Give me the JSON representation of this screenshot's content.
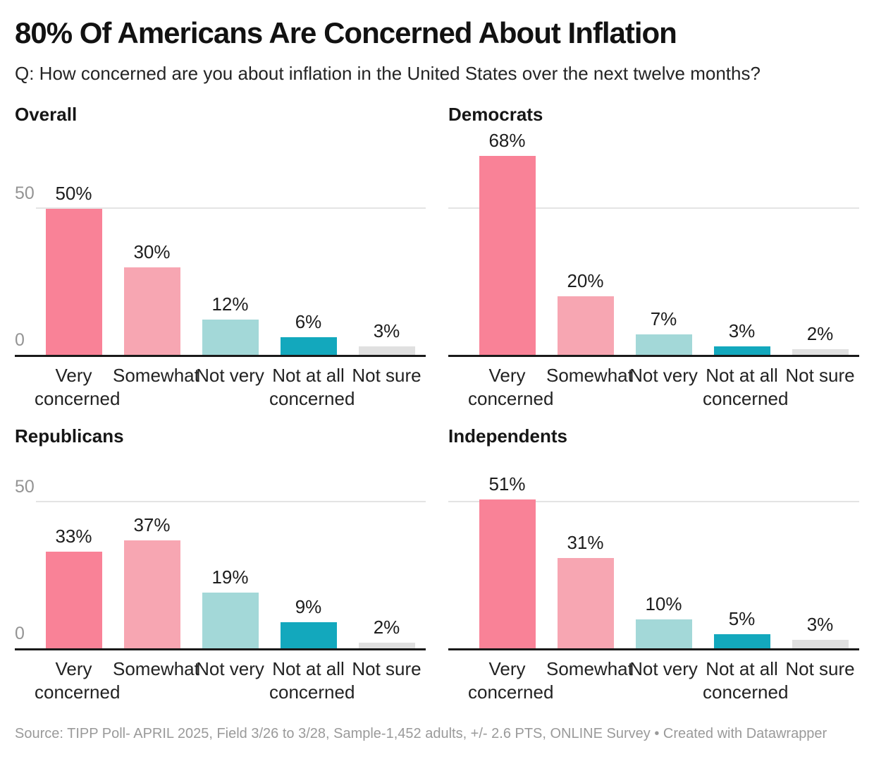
{
  "header": {
    "title": "80% Of Americans Are Concerned About Inflation",
    "subtitle": "Q: How concerned are you about inflation in the United States over the next twelve months?"
  },
  "chart_data": {
    "type": "bar",
    "layout": "2x2 small multiples, shared scale",
    "categories": [
      "Very concerned",
      "Somewhat",
      "Not very",
      "Not at all concerned",
      "Not sure"
    ],
    "unit": "%",
    "ylim": [
      0,
      68
    ],
    "y_ticks": [
      0,
      50
    ],
    "gridline_value": 50,
    "grid": "single horizontal gridline at 50; axis tick labels shown only on left-column panels",
    "series": [
      {
        "name": "Overall",
        "values": [
          50,
          30,
          12,
          6,
          3
        ],
        "value_labels": [
          "50%",
          "30%",
          "12%",
          "6%",
          "3%"
        ],
        "show_axis_labels": true
      },
      {
        "name": "Democrats",
        "values": [
          68,
          20,
          7,
          3,
          2
        ],
        "value_labels": [
          "68%",
          "20%",
          "7%",
          "3%",
          "2%"
        ],
        "show_axis_labels": false
      },
      {
        "name": "Republicans",
        "values": [
          33,
          37,
          19,
          9,
          2
        ],
        "value_labels": [
          "33%",
          "37%",
          "19%",
          "9%",
          "2%"
        ],
        "show_axis_labels": true
      },
      {
        "name": "Independents",
        "values": [
          51,
          31,
          10,
          5,
          3
        ],
        "value_labels": [
          "51%",
          "31%",
          "10%",
          "5%",
          "3%"
        ],
        "show_axis_labels": false
      }
    ],
    "bar_colors": [
      "#f98297",
      "#f7a6b2",
      "#a3d8d8",
      "#13a8bd",
      "#e0e0e0"
    ],
    "axis_colors": {
      "tick_label": "#949494",
      "gridline": "#e4e4e4",
      "baseline": "#1a1a1a"
    }
  },
  "footer": {
    "source": "Source: TIPP Poll- APRIL 2025, Field 3/26 to 3/28, Sample-1,452 adults, +/- 2.6 PTS, ONLINE Survey • Created with Datawrapper"
  }
}
